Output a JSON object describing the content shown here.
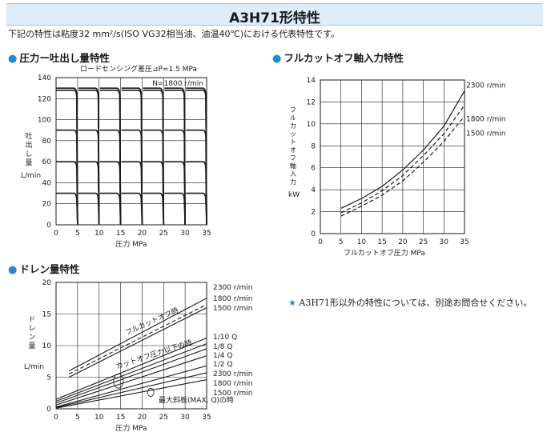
{
  "header": {
    "title": "A3H71形特性"
  },
  "note": "下記の特性は粘度32 mm²/s(ISO VG32相当油、油温40℃)における代表特性です。",
  "side_note": {
    "star": "★",
    "text": "A3H71形以外の特性については、別途お問合せください。"
  },
  "colors": {
    "banner_bg": "#dcecf8",
    "accent": "#1e88d0",
    "line": "#1a1a1a"
  },
  "chart_data": [
    {
      "id": "flow",
      "section": "圧力ー吐出し量特性",
      "type": "line",
      "ylabel": "吐出し量",
      "yunit": "L/min",
      "xlabel": "圧力 MPa",
      "xlim": [
        0,
        35
      ],
      "ylim": [
        0,
        140
      ],
      "xticks": [
        0,
        5,
        10,
        15,
        20,
        25,
        30,
        35
      ],
      "yticks": [
        0,
        20,
        40,
        60,
        80,
        100,
        120,
        140
      ],
      "annotations": [
        "ロードセンシング差圧⊿P=1.5 MPa",
        "N=1800 r/min"
      ],
      "flow_levels": [
        130,
        128,
        90,
        60,
        30
      ],
      "cutoff_pressures": [
        5,
        10,
        15,
        20,
        25,
        30,
        35
      ]
    },
    {
      "id": "power",
      "section": "フルカットオフ軸入力特性",
      "type": "line",
      "ylabel": "フルカットオフ軸入力",
      "yunit": "kW",
      "xlabel": "フルカットオフ圧力 MPa",
      "xlim": [
        0,
        35
      ],
      "ylim": [
        0,
        14
      ],
      "xticks": [
        0,
        5,
        10,
        15,
        20,
        25,
        30,
        35
      ],
      "yticks": [
        0,
        2,
        4,
        6,
        8,
        10,
        12,
        14
      ],
      "series": [
        {
          "name": "2300 r/min",
          "dash": false,
          "x": [
            5,
            10,
            15,
            20,
            25,
            30,
            35
          ],
          "y": [
            2.3,
            3.2,
            4.3,
            5.8,
            7.6,
            9.8,
            13.0
          ]
        },
        {
          "name": "1800 r/min",
          "dash": true,
          "x": [
            5,
            10,
            15,
            20,
            25,
            30,
            35
          ],
          "y": [
            1.9,
            2.8,
            3.9,
            5.3,
            7.1,
            9.1,
            11.7
          ]
        },
        {
          "name": "1500 r/min",
          "dash": true,
          "x": [
            5,
            10,
            15,
            20,
            25,
            30,
            35
          ],
          "y": [
            1.6,
            2.5,
            3.5,
            4.8,
            6.5,
            8.4,
            10.7
          ]
        }
      ]
    },
    {
      "id": "drain",
      "section": "ドレン量特性",
      "type": "line",
      "ylabel": "ドレン量",
      "yunit": "L/min",
      "xlabel": "圧力 MPa",
      "xlim": [
        0,
        35
      ],
      "ylim": [
        0,
        20
      ],
      "xticks": [
        0,
        5,
        10,
        15,
        20,
        25,
        30,
        35
      ],
      "yticks": [
        0,
        5,
        10,
        15,
        20
      ],
      "annotations": [
        "フルカットオフ時",
        "カットオフ圧力以下の時",
        "最大斜板(MAX. Q)の時"
      ],
      "series": [
        {
          "name": "2300 r/min",
          "group": "フルカットオフ時",
          "dash": false,
          "x": [
            3,
            35
          ],
          "y": [
            6.0,
            17.5
          ]
        },
        {
          "name": "1800 r/min",
          "group": "フルカットオフ時",
          "dash": true,
          "x": [
            3,
            35
          ],
          "y": [
            5.5,
            16.5
          ]
        },
        {
          "name": "1500 r/min",
          "group": "フルカットオフ時",
          "dash": false,
          "x": [
            3,
            35
          ],
          "y": [
            5.0,
            16.0
          ]
        },
        {
          "name": "1/10 Q",
          "group": "カットオフ圧力以下の時",
          "dash": false,
          "x": [
            0,
            35
          ],
          "y": [
            1.5,
            11.2
          ]
        },
        {
          "name": "1/8 Q",
          "group": "カットオフ圧力以下の時",
          "dash": false,
          "x": [
            0,
            35
          ],
          "y": [
            1.2,
            10.3
          ]
        },
        {
          "name": "1/4 Q",
          "group": "カットオフ圧力以下の時",
          "dash": false,
          "x": [
            0,
            35
          ],
          "y": [
            0.9,
            9.5
          ]
        },
        {
          "name": "1/2 Q",
          "group": "カットオフ圧力以下の時",
          "dash": false,
          "x": [
            0,
            35
          ],
          "y": [
            0.6,
            8.4
          ]
        },
        {
          "name": "2300 r/min",
          "group": "最大斜板(MAX. Q)の時",
          "dash": false,
          "x": [
            0,
            35
          ],
          "y": [
            0.3,
            6.8
          ]
        },
        {
          "name": "1800 r/min",
          "group": "最大斜板(MAX. Q)の時",
          "dash": false,
          "x": [
            0,
            35
          ],
          "y": [
            0.2,
            5.7
          ]
        },
        {
          "name": "1500 r/min",
          "group": "最大斜板(MAX. Q)の時",
          "dash": false,
          "x": [
            0,
            35
          ],
          "y": [
            0.1,
            4.6
          ]
        }
      ]
    }
  ]
}
